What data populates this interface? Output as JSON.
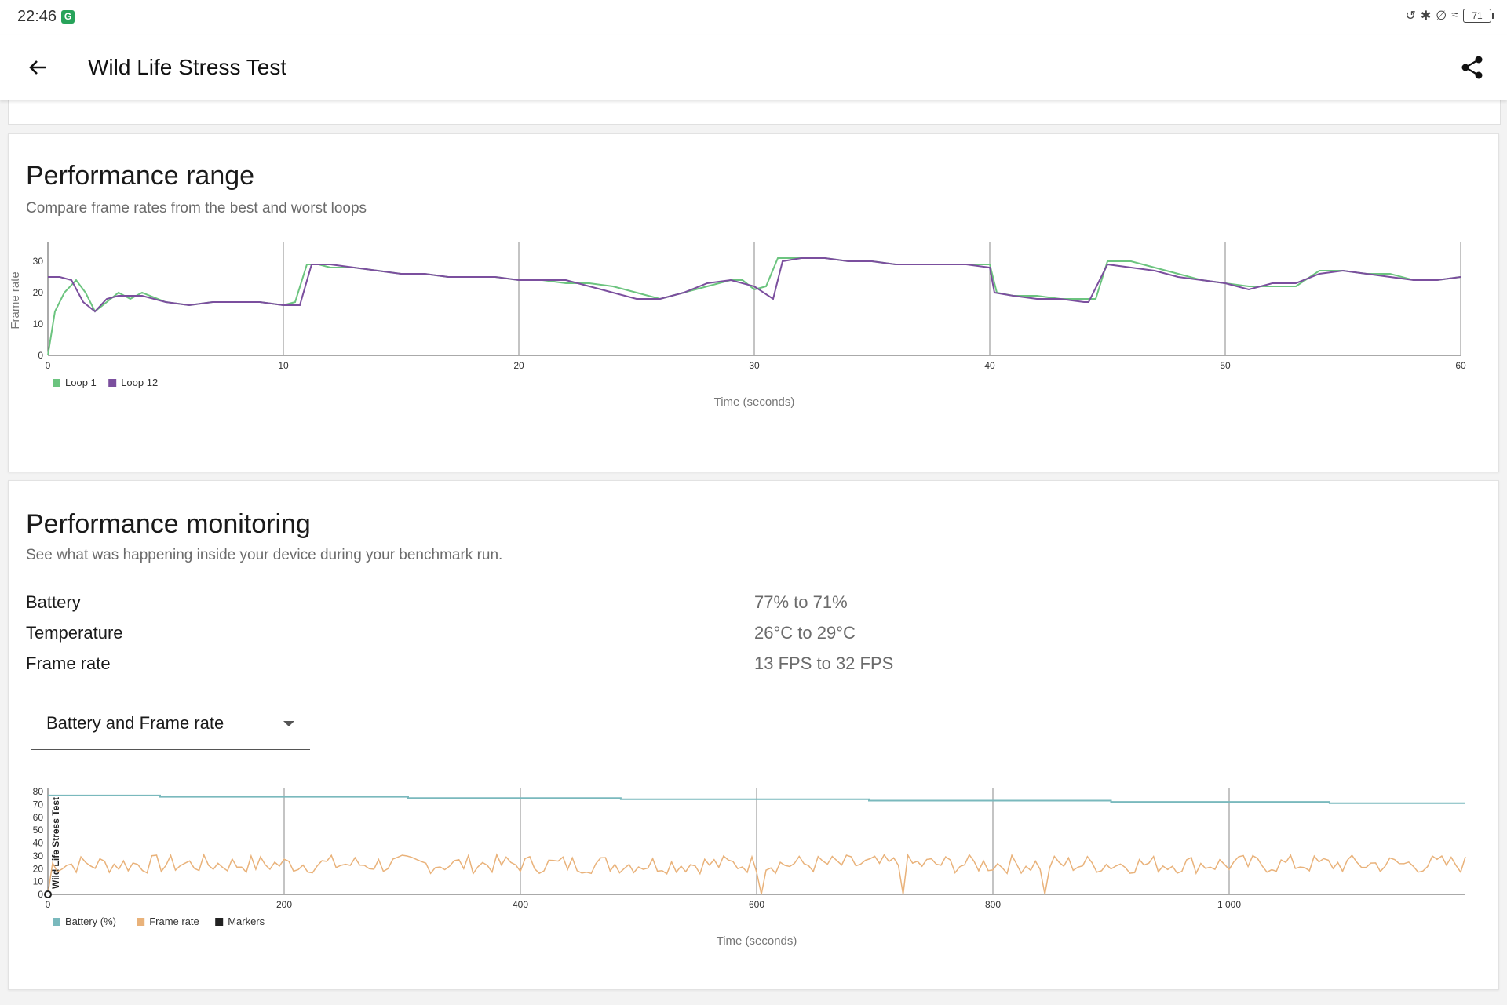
{
  "status": {
    "time": "22:46",
    "app_badge": "G",
    "battery": "71"
  },
  "appbar": {
    "title": "Wild Life Stress Test"
  },
  "icons": {
    "back": "back-arrow-icon",
    "share": "share-icon"
  },
  "range_card": {
    "title": "Performance range",
    "subtitle": "Compare frame rates from the best and worst loops"
  },
  "monitor_card": {
    "title": "Performance monitoring",
    "subtitle": "See what was happening inside your device during your benchmark run.",
    "metrics": [
      {
        "label": "Battery",
        "value": "77% to 71%"
      },
      {
        "label": "Temperature",
        "value": "26°C to 29°C"
      },
      {
        "label": "Frame rate",
        "value": "13 FPS to 32 FPS"
      }
    ],
    "dropdown": {
      "selected": "Battery and Frame rate"
    }
  },
  "colors": {
    "loop1": "#6cc47f",
    "loop12": "#7b4f9e",
    "battery": "#7ab9bd",
    "framerate": "#e9b27a",
    "markers": "#222222",
    "grid": "#8a8a8a"
  },
  "chart_data": [
    {
      "type": "line",
      "title": "",
      "xlabel": "Time (seconds)",
      "ylabel": "Frame rate",
      "xlim": [
        0,
        60
      ],
      "ylim": [
        0,
        35
      ],
      "xticks": [
        0,
        10,
        20,
        30,
        40,
        50,
        60
      ],
      "yticks": [
        0,
        10,
        20,
        30
      ],
      "grid": "vertical",
      "legend": "bottom-left",
      "series": [
        {
          "name": "Loop 1",
          "x": [
            0,
            0.3,
            0.7,
            1.2,
            1.6,
            2,
            2.5,
            3,
            3.5,
            4,
            5,
            6,
            7,
            8,
            9,
            10,
            10.5,
            11,
            11.5,
            12,
            13,
            14,
            15,
            16,
            17,
            18,
            19,
            20,
            21,
            22,
            23,
            24,
            25,
            26,
            27,
            28,
            29,
            29.5,
            30,
            30.5,
            31,
            32,
            33,
            34,
            35,
            36,
            37,
            38,
            39,
            40,
            40.3,
            41,
            42,
            43,
            44,
            44.5,
            45,
            46,
            47,
            48,
            49,
            50,
            51,
            52,
            53,
            54,
            55,
            56,
            57,
            58,
            59,
            60
          ],
          "values": [
            0,
            14,
            20,
            24,
            20,
            14,
            17,
            20,
            18,
            20,
            17,
            16,
            17,
            17,
            17,
            16,
            17,
            29,
            29,
            28,
            28,
            27,
            26,
            26,
            25,
            25,
            25,
            24,
            24,
            23,
            23,
            22,
            20,
            18,
            20,
            22,
            24,
            24,
            21,
            22,
            31,
            31,
            31,
            30,
            30,
            29,
            29,
            29,
            29,
            29,
            20,
            19,
            19,
            18,
            18,
            18,
            30,
            30,
            28,
            26,
            24,
            23,
            22,
            22,
            22,
            27,
            27,
            26,
            26,
            24,
            24,
            25
          ]
        },
        {
          "name": "Loop 12",
          "x": [
            0,
            0.5,
            1,
            1.5,
            2,
            2.5,
            3,
            3.5,
            4,
            5,
            6,
            7,
            8,
            9,
            10,
            10.7,
            11.2,
            12,
            13,
            14,
            15,
            16,
            17,
            18,
            19,
            20,
            21,
            22,
            23,
            24,
            25,
            26,
            27,
            28,
            29,
            30,
            30.8,
            31.2,
            32,
            33,
            34,
            35,
            36,
            37,
            38,
            39,
            40,
            40.2,
            41,
            42,
            43,
            44,
            44.2,
            45,
            46,
            47,
            48,
            49,
            50,
            51,
            52,
            53,
            54,
            55,
            56,
            57,
            58,
            59,
            60
          ],
          "values": [
            25,
            25,
            24,
            17,
            14,
            18,
            19,
            19,
            19,
            17,
            16,
            17,
            17,
            17,
            16,
            16,
            29,
            29,
            28,
            27,
            26,
            26,
            25,
            25,
            25,
            24,
            24,
            24,
            22,
            20,
            18,
            18,
            20,
            23,
            24,
            22,
            18,
            30,
            31,
            31,
            30,
            30,
            29,
            29,
            29,
            29,
            28,
            20,
            19,
            18,
            18,
            17,
            17,
            29,
            28,
            27,
            25,
            24,
            23,
            21,
            23,
            23,
            26,
            27,
            26,
            25,
            24,
            24,
            25
          ]
        }
      ]
    },
    {
      "type": "line",
      "title": "",
      "xlabel": "Time (seconds)",
      "ylabel": "Wild Life Stress Test",
      "xlim": [
        0,
        1200
      ],
      "ylim": [
        0,
        80
      ],
      "xticks": [
        0,
        200,
        400,
        600,
        800,
        1000
      ],
      "xtick_labels": [
        "0",
        "200",
        "400",
        "600",
        "800",
        "1 000"
      ],
      "yticks": [
        0,
        10,
        20,
        30,
        40,
        50,
        60,
        70,
        80
      ],
      "grid": "vertical",
      "legend": "bottom-left",
      "series": [
        {
          "name": "Battery (%)",
          "x": [
            0,
            95,
            95,
            305,
            305,
            485,
            485,
            695,
            695,
            900,
            900,
            1085,
            1085,
            1200
          ],
          "values": [
            77,
            77,
            76,
            76,
            75,
            75,
            74,
            74,
            73,
            73,
            72,
            72,
            71,
            71
          ]
        },
        {
          "name": "Frame rate",
          "x": [
            0,
            600,
            605,
            607,
            720,
            725,
            728,
            840,
            845,
            848,
            1200
          ],
          "values": [
            22,
            22,
            0,
            22,
            22,
            0,
            22,
            22,
            0,
            22,
            22
          ],
          "note_range": [
            13,
            32
          ]
        },
        {
          "name": "Markers",
          "x": [
            0
          ],
          "values": [
            0
          ]
        }
      ]
    }
  ]
}
